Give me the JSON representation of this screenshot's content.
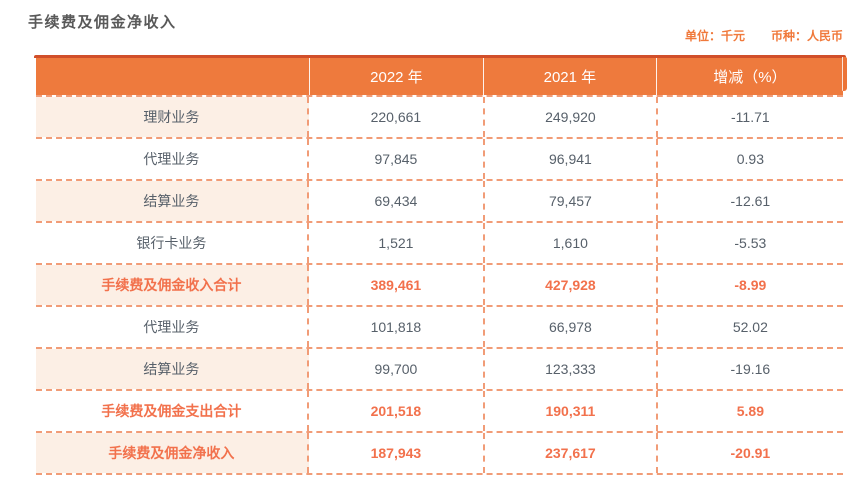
{
  "page": {
    "title": "手续费及佣金净收入",
    "unit_label": "单位：千元",
    "currency_label": "币种：人民币"
  },
  "colors": {
    "header_bg": "#ee7a3d",
    "header_bevel": "#d14f2a",
    "row_stripe_bg": "#fcefe5",
    "dashed_border": "#f19c77",
    "highlight_text": "#f2714c",
    "body_text": "#57606a",
    "unit_text": "#f0793b"
  },
  "table": {
    "columns": [
      "",
      "2022 年",
      "2021 年",
      "增减（%）"
    ],
    "rows": [
      {
        "label": "理财业务",
        "y2022": "220,661",
        "y2021": "249,920",
        "change": "-11.71"
      },
      {
        "label": "代理业务",
        "y2022": "97,845",
        "y2021": "96,941",
        "change": "0.93"
      },
      {
        "label": "结算业务",
        "y2022": "69,434",
        "y2021": "79,457",
        "change": "-12.61"
      },
      {
        "label": "银行卡业务",
        "y2022": "1,521",
        "y2021": "1,610",
        "change": "-5.53"
      },
      {
        "label": "手续费及佣金收入合计",
        "y2022": "389,461",
        "y2021": "427,928",
        "change": "-8.99"
      },
      {
        "label": "代理业务",
        "y2022": "101,818",
        "y2021": "66,978",
        "change": "52.02"
      },
      {
        "label": "结算业务",
        "y2022": "99,700",
        "y2021": "123,333",
        "change": "-19.16"
      },
      {
        "label": "手续费及佣金支出合计",
        "y2022": "201,518",
        "y2021": "190,311",
        "change": "5.89"
      },
      {
        "label": "手续费及佣金净收入",
        "y2022": "187,943",
        "y2021": "237,617",
        "change": "-20.91"
      }
    ]
  }
}
